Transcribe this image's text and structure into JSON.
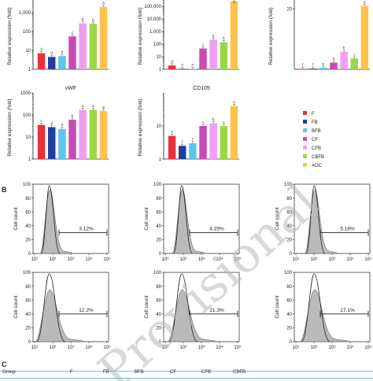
{
  "legend": [
    {
      "label": "F",
      "color": "#e8323c"
    },
    {
      "label": "FB",
      "color": "#1f3fa0"
    },
    {
      "label": "BFB",
      "color": "#5bc6ee"
    },
    {
      "label": "CF",
      "color": "#c84ab8"
    },
    {
      "label": "CFB",
      "color": "#ee9ff0"
    },
    {
      "label": "CBFB",
      "color": "#9ad84a"
    },
    {
      "label": "AOC",
      "color": "#fcc24c"
    }
  ],
  "chart_data": [
    {
      "type": "bar",
      "panel": "A1",
      "scale": "log",
      "ylim": [
        1,
        10000
      ],
      "ticks": [
        "1",
        "10",
        "100",
        "1,000",
        "10,000"
      ],
      "top_tick_partial": "10,000",
      "ylabel": "Relative expression (fold)",
      "title": "",
      "categories": [
        "F",
        "FB",
        "BFB",
        "CF",
        "CFB",
        "CBFB",
        "AOC"
      ],
      "values": [
        7,
        4.5,
        5,
        55,
        270,
        260,
        2000
      ],
      "letters": [
        "d",
        "d",
        "d",
        "c",
        "b",
        "b",
        "a"
      ]
    },
    {
      "type": "bar",
      "panel": "A2",
      "scale": "log",
      "ylim": [
        1,
        1000000
      ],
      "ticks": [
        "1",
        "10",
        "100",
        "1,000",
        "10,000",
        "100,000"
      ],
      "top_tick_partial": "1,000,000",
      "ylabel": "Relative expression (fold)",
      "title": "",
      "categories": [
        "F",
        "FB",
        "BFB",
        "CF",
        "CFB",
        "CBFB",
        "AOC"
      ],
      "values": [
        2,
        1,
        1,
        45,
        220,
        140,
        250000
      ],
      "letters": [
        "d",
        "e",
        "e",
        "c",
        "b",
        "b",
        "a"
      ]
    },
    {
      "type": "bar",
      "panel": "A3",
      "scale": "linear",
      "ylim": [
        0,
        25
      ],
      "ticks": [
        "20"
      ],
      "top_tick_partial": "",
      "ylabel": "Relative expression (fold)",
      "title": "",
      "categories": [
        "F",
        "FB",
        "BFB",
        "CF",
        "CFB",
        "CBFB",
        "AOC"
      ],
      "values": [
        0.1,
        0.2,
        0.5,
        2.2,
        5.8,
        3.6,
        21
      ],
      "letters": [
        "f",
        "f",
        "e",
        "d",
        "b",
        "c",
        "a"
      ]
    },
    {
      "type": "bar",
      "panel": "A4",
      "scale": "log",
      "ylim": [
        1,
        1000
      ],
      "ticks": [
        "1",
        "10",
        "100",
        "1000"
      ],
      "top_tick_partial": "",
      "ylabel": "Relative expression (fold)",
      "title": "vWF",
      "categories": [
        "F",
        "FB",
        "BFB",
        "CF",
        "CFB",
        "CBFB",
        "AOC"
      ],
      "values": [
        35,
        28,
        23,
        60,
        170,
        170,
        150
      ],
      "letters": [
        "c",
        "d",
        "d",
        "b",
        "a",
        "a",
        "a"
      ]
    },
    {
      "type": "bar",
      "panel": "A5",
      "scale": "log",
      "ylim": [
        1,
        100
      ],
      "ticks": [
        "1",
        "10"
      ],
      "top_tick_partial": "",
      "ylabel": "Relative expression (fold)",
      "title": "CD105",
      "categories": [
        "F",
        "FB",
        "BFB",
        "CF",
        "CFB",
        "CBFB",
        "AOC"
      ],
      "values": [
        5,
        2.5,
        3,
        10,
        12,
        10,
        40
      ],
      "letters": [
        "e",
        "f",
        "f",
        "c",
        "b",
        "c",
        "a"
      ]
    }
  ],
  "section_labels": {
    "b": "B",
    "c": "C"
  },
  "flow": {
    "ylabel": "Cell count",
    "yticks": [
      "0",
      "20",
      "40",
      "60",
      "80",
      "100"
    ],
    "xticks": [
      "10¹",
      "10²",
      "10³",
      "10⁴",
      "10⁵"
    ],
    "panels": [
      {
        "percent": "3.12%",
        "gate_y": 30
      },
      {
        "percent": "4.29%",
        "gate_y": 30
      },
      {
        "percent": "5.16%",
        "gate_y": 30
      },
      {
        "percent": "12.2%",
        "gate_y": 40
      },
      {
        "percent": "21.3%",
        "gate_y": 40
      },
      {
        "percent": "17.1%",
        "gate_y": 40
      }
    ]
  },
  "table_c": {
    "headers": [
      "Group",
      "F",
      "FB",
      "BFB",
      "CF",
      "CFB",
      "CBFB"
    ]
  },
  "watermark": "Provisional"
}
